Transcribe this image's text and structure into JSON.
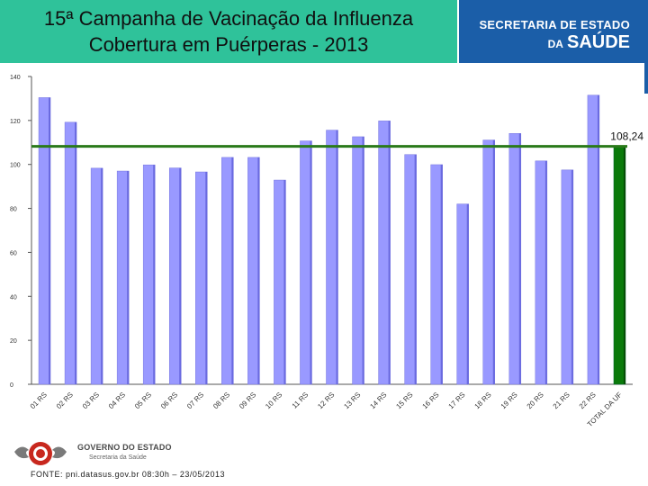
{
  "header": {
    "title_line1": "15ª Campanha de Vacinação da Influenza",
    "title_line2": "Cobertura em Puérperas - 2013"
  },
  "brand": {
    "line1": "SECRETARIA DE ESTADO",
    "line2_prefix": "DA",
    "line2_main": "SAÚDE",
    "color": "#1b5ea8"
  },
  "footer": {
    "gov_line1": "GOVERNO DO ESTADO",
    "gov_line2": "Secretaria da Saúde",
    "source": "FONTE: pni.datasus.gov.br 08:30h – 23/05/2013"
  },
  "chart_data": {
    "type": "bar",
    "ylim": [
      0,
      140
    ],
    "yticks": [
      0,
      20,
      40,
      60,
      80,
      100,
      120,
      140
    ],
    "tick_labels": [
      "0",
      "20",
      "40",
      "60",
      "80",
      "100",
      "120",
      "140"
    ],
    "categories": [
      "01 RS",
      "02 RS",
      "03 RS",
      "04 RS",
      "05 RS",
      "06 RS",
      "07 RS",
      "08 RS",
      "09 RS",
      "10 RS",
      "11 RS",
      "12 RS",
      "13 RS",
      "14 RS",
      "15 RS",
      "16 RS",
      "17 RS",
      "18 RS",
      "19 RS",
      "20 RS",
      "21 RS",
      "22 RS",
      "TOTAL DA UF"
    ],
    "values": [
      130.4,
      119.2,
      98.3,
      97.0,
      99.8,
      98.4,
      96.6,
      103.2,
      103.2,
      92.9,
      110.7,
      115.6,
      112.6,
      119.8,
      104.5,
      99.9,
      82.0,
      111.1,
      114.1,
      101.6,
      97.5,
      131.5,
      108.24
    ],
    "highlight_index": 22,
    "reference_line": {
      "value": 108.24,
      "label": "108,24"
    },
    "colors": {
      "bar": "#9999ff",
      "total": "#0a7a0a",
      "reference_line": "#2a7a1a"
    },
    "grid": false
  }
}
